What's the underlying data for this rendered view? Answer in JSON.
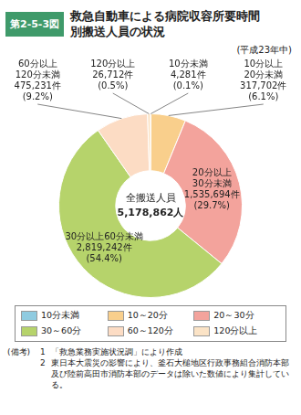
{
  "chart_data": {
    "type": "pie",
    "figure_label": "第2-5-3図",
    "title": "救急自動車による病院収容所要時間\n別搬送人員の状況",
    "subtitle": "(平成23年中)",
    "categories": [
      "10分未満",
      "10分以上\n20分未満",
      "20分以上\n30分未満",
      "30分以上60分未満",
      "60分以上\n120分未満",
      "120分以上"
    ],
    "values": [
      4281,
      317702,
      1535694,
      2819242,
      475231,
      26712
    ],
    "value_labels": [
      "4,281件",
      "317,702件",
      "1,535,694件",
      "2,819,242件",
      "475,231件",
      "26,712件"
    ],
    "percentages": [
      0.1,
      6.1,
      29.7,
      54.4,
      9.2,
      0.5
    ],
    "percentage_labels": [
      "(0.1%)",
      "(6.1%)",
      "(29.7%)",
      "(54.4%)",
      "(9.2%)",
      "(0.5%)"
    ],
    "colors": [
      "#8fcbe0",
      "#f9cf8c",
      "#f3a39c",
      "#b6d36b",
      "#fcdcc4",
      "#fbe3c6"
    ],
    "data_labels": true,
    "legend": "bottom",
    "legend_labels": [
      "10分未満",
      "10～20分",
      "20～30分",
      "30～60分",
      "60～120分",
      "120分以上"
    ],
    "center_title": "全搬送人員",
    "center_value": 5178862,
    "center_value_label": "5,178,862人",
    "notes": {
      "heading": "(備考)",
      "items": [
        {
          "number": "1",
          "text": "「救急業務実施状況調」により作成"
        },
        {
          "number": "2",
          "text": "東日本大震災の影響により、釜石大槌地区行政事務組合消防本部及び陸前高田市消防本部のデータは除いた数値により集計している。"
        }
      ]
    }
  }
}
